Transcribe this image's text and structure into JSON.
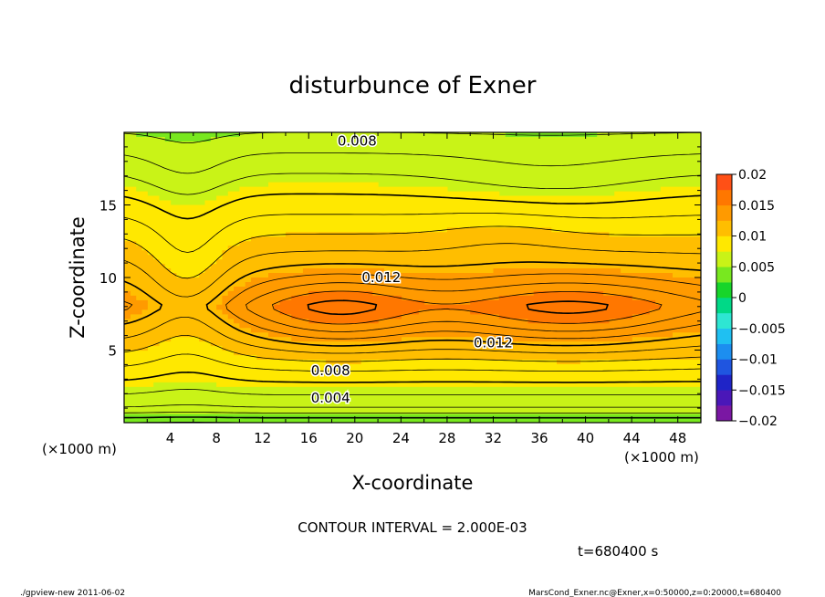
{
  "chart_data": {
    "type": "heatmap",
    "title": "disturbunce of Exner",
    "xlabel": "X-coordinate",
    "ylabel": "Z-coordinate",
    "x_unit_left": "(×1000 m)",
    "x_unit_right": "(×1000 m)",
    "xlim": [
      0,
      50
    ],
    "ylim": [
      0,
      20
    ],
    "x_ticks": [
      {
        "v": 4,
        "label": "4"
      },
      {
        "v": 8,
        "label": "8"
      },
      {
        "v": 12,
        "label": "12"
      },
      {
        "v": 16,
        "label": "16"
      },
      {
        "v": 20,
        "label": "20"
      },
      {
        "v": 24,
        "label": "24"
      },
      {
        "v": 28,
        "label": "28"
      },
      {
        "v": 32,
        "label": "32"
      },
      {
        "v": 36,
        "label": "36"
      },
      {
        "v": 40,
        "label": "40"
      },
      {
        "v": 44,
        "label": "44"
      },
      {
        "v": 48,
        "label": "48"
      }
    ],
    "y_ticks": [
      {
        "v": 5,
        "label": "5"
      },
      {
        "v": 10,
        "label": "10"
      },
      {
        "v": 15,
        "label": "15"
      }
    ],
    "contour_interval_text": "CONTOUR INTERVAL = 2.000E-03",
    "time_text": "t=680400 s",
    "contour_labels": [
      {
        "text": "0.008",
        "x": 20.2,
        "z": 19.4
      },
      {
        "text": "0.012",
        "x": 22.3,
        "z": 10.0
      },
      {
        "text": "0.012",
        "x": 32.0,
        "z": 5.5
      },
      {
        "text": "0.008",
        "x": 17.9,
        "z": 3.6
      },
      {
        "text": "0.004",
        "x": 17.9,
        "z": 1.7
      }
    ],
    "colorbar": {
      "min": -0.02,
      "max": 0.02,
      "step": 0.0025,
      "ticks": [
        {
          "v": 0.02,
          "label": "0.02"
        },
        {
          "v": 0.015,
          "label": "0.015"
        },
        {
          "v": 0.01,
          "label": "0.01"
        },
        {
          "v": 0.005,
          "label": "0.005"
        },
        {
          "v": 0,
          "label": "0"
        },
        {
          "v": -0.005,
          "label": "−0.005"
        },
        {
          "v": -0.01,
          "label": "−0.01"
        },
        {
          "v": -0.015,
          "label": "−0.015"
        },
        {
          "v": -0.02,
          "label": "−0.02"
        }
      ],
      "colors": [
        "#7a17a3",
        "#4a17b8",
        "#1f24c7",
        "#1f55e0",
        "#1c8ef0",
        "#1fc0f2",
        "#2ee6d3",
        "#00d987",
        "#17d52a",
        "#78e81f",
        "#c9f317",
        "#ffe800",
        "#ffbe00",
        "#ff9a00",
        "#ff7700",
        "#ff5016",
        "#ff3d20",
        "#ff7777",
        "#ffb6b6"
      ]
    }
  },
  "footer": {
    "left": "./gpview-new   2011-06-02",
    "right": "MarsCond_Exner.nc@Exner,x=0:50000,z=0:20000,t=680400"
  }
}
